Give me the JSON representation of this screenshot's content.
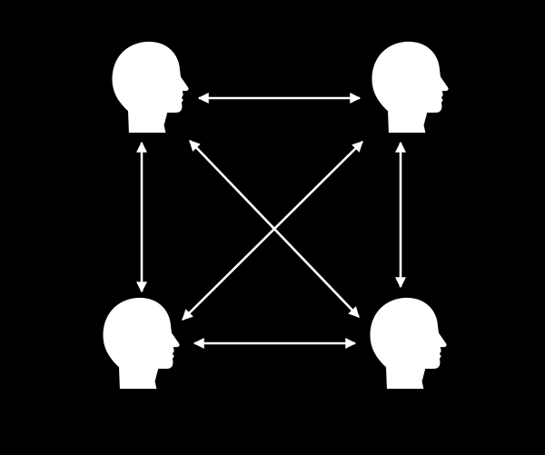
{
  "diagram": {
    "background_color": "#000000",
    "foreground_color": "#ffffff",
    "nodes": [
      {
        "id": "top-left",
        "icon": "head-profile-icon",
        "facing": "right"
      },
      {
        "id": "top-right",
        "icon": "head-profile-icon",
        "facing": "right"
      },
      {
        "id": "bottom-left",
        "icon": "head-profile-icon",
        "facing": "right"
      },
      {
        "id": "bottom-right",
        "icon": "head-profile-icon",
        "facing": "right"
      }
    ],
    "connections": [
      {
        "from": "top-left",
        "to": "top-right",
        "direction": "bidirectional"
      },
      {
        "from": "bottom-left",
        "to": "bottom-right",
        "direction": "bidirectional"
      },
      {
        "from": "top-left",
        "to": "bottom-left",
        "direction": "bidirectional"
      },
      {
        "from": "top-right",
        "to": "bottom-right",
        "direction": "bidirectional"
      },
      {
        "from": "top-left",
        "to": "bottom-right",
        "direction": "bidirectional"
      },
      {
        "from": "top-right",
        "to": "bottom-left",
        "direction": "bidirectional"
      }
    ]
  }
}
